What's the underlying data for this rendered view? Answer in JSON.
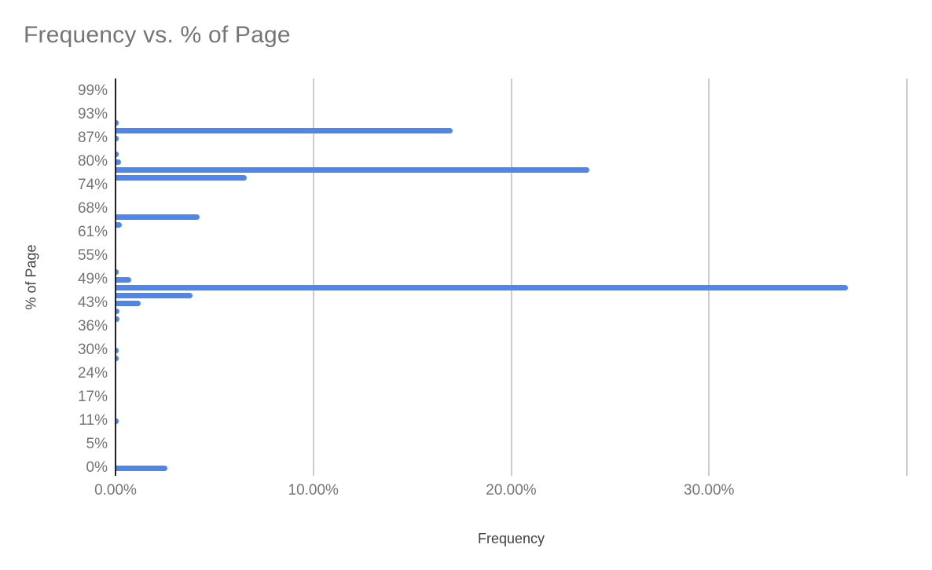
{
  "chart_data": {
    "type": "bar",
    "orientation": "horizontal",
    "title": "Frequency vs. % of Page",
    "xlabel": "Frequency",
    "ylabel": "% of Page",
    "x_axis": {
      "ticks": [
        "0.00%",
        "10.00%",
        "20.00%",
        "30.00%"
      ],
      "tick_values": [
        0,
        10,
        20,
        30
      ],
      "gridline_values": [
        10,
        20,
        30,
        40
      ],
      "min": 0,
      "max": 40,
      "grid": true
    },
    "y_axis": {
      "labels": [
        "99%",
        "93%",
        "87%",
        "80%",
        "74%",
        "68%",
        "61%",
        "55%",
        "49%",
        "43%",
        "36%",
        "30%",
        "24%",
        "17%",
        "11%",
        "5%",
        "0%"
      ],
      "num_rows": 49,
      "label_every_n_rows": 3
    },
    "bars": [
      {
        "row": 4,
        "value": 0.09
      },
      {
        "row": 5,
        "value": 17.0
      },
      {
        "row": 6,
        "value": 0.12
      },
      {
        "row": 8,
        "value": 0.06
      },
      {
        "row": 9,
        "value": 0.23
      },
      {
        "row": 10,
        "value": 23.9
      },
      {
        "row": 11,
        "value": 6.6
      },
      {
        "row": 16,
        "value": 4.2
      },
      {
        "row": 17,
        "value": 0.28
      },
      {
        "row": 23,
        "value": 0.04
      },
      {
        "row": 24,
        "value": 0.75
      },
      {
        "row": 25,
        "value": 37.0
      },
      {
        "row": 26,
        "value": 3.85
      },
      {
        "row": 27,
        "value": 1.24
      },
      {
        "row": 28,
        "value": 0.16
      },
      {
        "row": 29,
        "value": 0.16
      },
      {
        "row": 33,
        "value": 0.05
      },
      {
        "row": 34,
        "value": 0.05
      },
      {
        "row": 42,
        "value": 0.1
      },
      {
        "row": 48,
        "value": 2.6
      }
    ],
    "legend": "none",
    "colors": {
      "bar": "#4e86ec",
      "gridline": "#cccccc",
      "axis_line": "#212121",
      "title_text": "#757575",
      "tick_text": "#757575",
      "axis_title_text": "#424242",
      "background": "#ffffff"
    }
  }
}
